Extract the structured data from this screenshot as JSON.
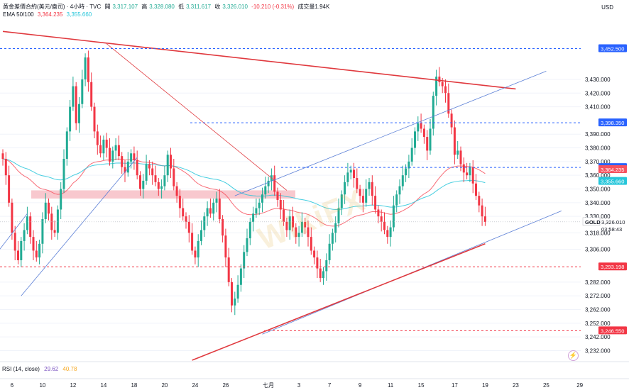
{
  "header": {
    "symbol": "黃金差價合約(美元/盎司) · 4小時 · TVC",
    "open_label": "開",
    "open": "3,317.107",
    "high_label": "高",
    "high": "3,328.080",
    "low_label": "低",
    "low": "3,311.617",
    "close_label": "收",
    "close": "3,326.010",
    "change": "-10.210 (-0.31%)",
    "volume": "成交量1.94K",
    "ema_label": "EMA 50/100",
    "ema_50": "3,364.235",
    "ema_100": "3,355.660"
  },
  "currency": "USD",
  "rsi": {
    "label": "RSI (14, close)",
    "value1": "29.62",
    "value2": "40.78"
  },
  "watermark": "WikiFX",
  "colors": {
    "up": "#22ab94",
    "down": "#f23645",
    "ema50": "#f7525f",
    "ema100": "#26c6da",
    "trend_blue": "#5b7fd6",
    "trend_red": "#e0393e",
    "dash_blue": "#2962ff",
    "dash_red": "#f23645",
    "zone": "#f6b6bd"
  },
  "chart_data": {
    "type": "candlestick",
    "title": "黃金差價合約(美元/盎司) · 4小時 · TVC",
    "ylim": [
      3225,
      3475
    ],
    "y_ticks": [
      3232,
      3242,
      3252,
      3262,
      3272,
      3282,
      3306,
      3318,
      3330,
      3340,
      3350,
      3360,
      3370,
      3380,
      3390,
      3410,
      3420,
      3430
    ],
    "x_ticks": [
      {
        "label": "6",
        "bar": 3
      },
      {
        "label": "10",
        "bar": 13
      },
      {
        "label": "12",
        "bar": 23
      },
      {
        "label": "14",
        "bar": 33
      },
      {
        "label": "18",
        "bar": 43
      },
      {
        "label": "20",
        "bar": 53
      },
      {
        "label": "24",
        "bar": 63
      },
      {
        "label": "26",
        "bar": 73
      },
      {
        "label": "七月",
        "bar": 87
      },
      {
        "label": "3",
        "bar": 97
      },
      {
        "label": "7",
        "bar": 107
      },
      {
        "label": "9",
        "bar": 117
      },
      {
        "label": "11",
        "bar": 127
      },
      {
        "label": "15",
        "bar": 137
      },
      {
        "label": "17",
        "bar": 148
      },
      {
        "label": "19",
        "bar": 158
      },
      {
        "label": "23",
        "bar": 168
      },
      {
        "label": "25",
        "bar": 178
      },
      {
        "label": "29",
        "bar": 189
      }
    ],
    "price_labels": [
      {
        "value": 3452.5,
        "text": "3,452.500",
        "style": "dash_blue"
      },
      {
        "value": 3398.35,
        "text": "3,398.350",
        "style": "dash_blue"
      },
      {
        "value": 3365.7,
        "text": "3,365.700",
        "style": "dash_blue"
      },
      {
        "value": 3364.235,
        "text": "3,364.235",
        "style": "ema50"
      },
      {
        "value": 3355.66,
        "text": "3,355.660",
        "style": "ema100"
      },
      {
        "value": 3326.01,
        "text": "3,326.010",
        "style": "current",
        "tag": "GOLD",
        "sub": "03:58:43"
      },
      {
        "value": 3293.198,
        "text": "3,293.198",
        "style": "dash_red"
      },
      {
        "value": 3246.55,
        "text": "3,246.550",
        "style": "dash_red"
      }
    ],
    "closes": [
      3372,
      3360,
      3340,
      3318,
      3305,
      3298,
      3312,
      3320,
      3330,
      3315,
      3305,
      3300,
      3310,
      3328,
      3340,
      3332,
      3320,
      3318,
      3335,
      3350,
      3372,
      3392,
      3410,
      3425,
      3398,
      3412,
      3430,
      3446,
      3428,
      3410,
      3392,
      3382,
      3376,
      3386,
      3380,
      3370,
      3378,
      3382,
      3374,
      3366,
      3362,
      3370,
      3376,
      3371,
      3360,
      3350,
      3356,
      3368,
      3365,
      3360,
      3355,
      3350,
      3352,
      3360,
      3375,
      3365,
      3352,
      3345,
      3336,
      3330,
      3326,
      3318,
      3305,
      3300,
      3312,
      3320,
      3330,
      3336,
      3332,
      3340,
      3343,
      3328,
      3316,
      3300,
      3282,
      3265,
      3270,
      3280,
      3292,
      3304,
      3314,
      3326,
      3332,
      3336,
      3340,
      3346,
      3352,
      3356,
      3360,
      3348,
      3342,
      3335,
      3326,
      3320,
      3330,
      3322,
      3315,
      3318,
      3326,
      3322,
      3315,
      3305,
      3300,
      3292,
      3285,
      3290,
      3298,
      3310,
      3318,
      3325,
      3336,
      3346,
      3355,
      3362,
      3364,
      3358,
      3350,
      3345,
      3340,
      3350,
      3355,
      3345,
      3335,
      3330,
      3326,
      3320,
      3315,
      3322,
      3338,
      3346,
      3352,
      3360,
      3365,
      3370,
      3380,
      3392,
      3398,
      3394,
      3388,
      3378,
      3394,
      3418,
      3432,
      3428,
      3425,
      3420,
      3405,
      3395,
      3375,
      3378,
      3368,
      3362,
      3360,
      3366,
      3354,
      3345,
      3338,
      3330,
      3326
    ]
  }
}
